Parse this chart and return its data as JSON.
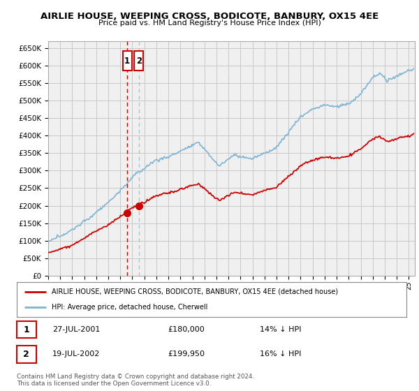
{
  "title": "AIRLIE HOUSE, WEEPING CROSS, BODICOTE, BANBURY, OX15 4EE",
  "subtitle": "Price paid vs. HM Land Registry's House Price Index (HPI)",
  "ylim": [
    0,
    670000
  ],
  "yticks": [
    0,
    50000,
    100000,
    150000,
    200000,
    250000,
    300000,
    350000,
    400000,
    450000,
    500000,
    550000,
    600000,
    650000
  ],
  "xlim_start": 1995.0,
  "xlim_end": 2025.5,
  "hpi_color": "#7fb3d3",
  "price_color": "#cc0000",
  "vline1_color": "#cc0000",
  "vline2_color": "#aac4dd",
  "background_color": "#ffffff",
  "grid_color": "#c8c8c8",
  "plot_bg_color": "#f0f0f0",
  "transactions": [
    {
      "date": 2001.57,
      "price": 180000,
      "label": "1"
    },
    {
      "date": 2002.54,
      "price": 199950,
      "label": "2"
    }
  ],
  "legend_entries": [
    "AIRLIE HOUSE, WEEPING CROSS, BODICOTE, BANBURY, OX15 4EE (detached house)",
    "HPI: Average price, detached house, Cherwell"
  ],
  "table_rows": [
    {
      "num": "1",
      "date": "27-JUL-2001",
      "price": "£180,000",
      "hpi": "14% ↓ HPI"
    },
    {
      "num": "2",
      "date": "19-JUL-2002",
      "price": "£199,950",
      "hpi": "16% ↓ HPI"
    }
  ],
  "footnote": "Contains HM Land Registry data © Crown copyright and database right 2024.\nThis data is licensed under the Open Government Licence v3.0.",
  "xtick_years": [
    1995,
    1996,
    1997,
    1998,
    1999,
    2000,
    2001,
    2002,
    2003,
    2004,
    2005,
    2006,
    2007,
    2008,
    2009,
    2010,
    2011,
    2012,
    2013,
    2014,
    2015,
    2016,
    2017,
    2018,
    2019,
    2020,
    2021,
    2022,
    2023,
    2024,
    2025
  ]
}
